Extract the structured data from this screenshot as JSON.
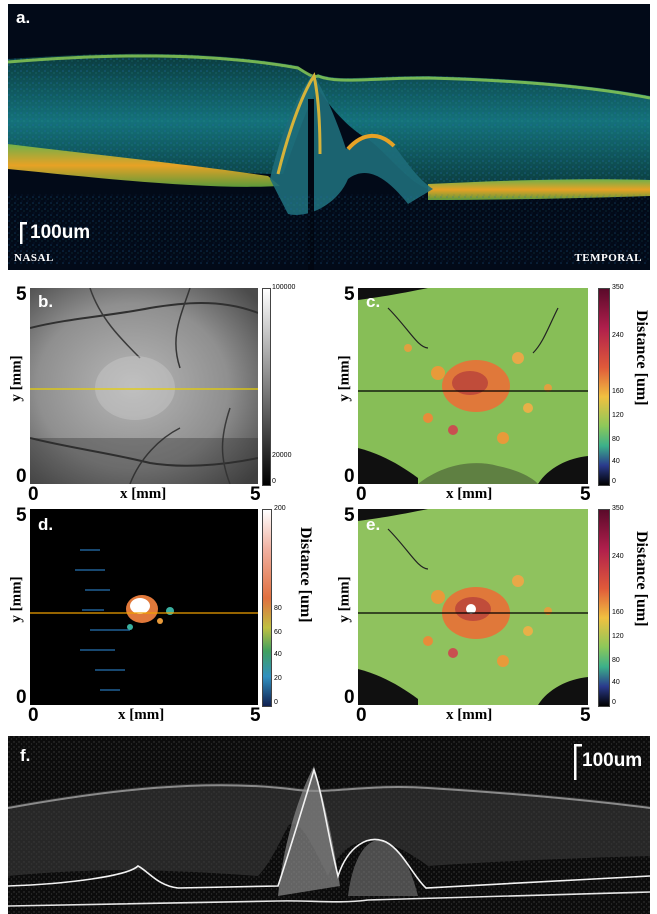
{
  "panels": {
    "a": {
      "label": "a.",
      "scale_bar": "100um",
      "left_orientation": "NASAL",
      "right_orientation": "TEMPORAL"
    },
    "b": {
      "label": "b.",
      "x_label": "x [mm]",
      "y_label": "y [mm]",
      "x_ticks": [
        "0",
        "5"
      ],
      "y_ticks": [
        "0",
        "5"
      ],
      "colorbar_ticks": [
        "100000",
        "20000",
        "0"
      ],
      "line_color": "#e8d000"
    },
    "c": {
      "label": "c.",
      "x_label": "x [mm]",
      "y_label": "y [mm]",
      "x_ticks": [
        "0",
        "5"
      ],
      "y_ticks": [
        "0",
        "5"
      ],
      "colorbar_title": "Distance [um]",
      "colorbar_ticks": [
        "350",
        "240",
        "160",
        "120",
        "80",
        "40",
        "0"
      ],
      "line_color": "#000000"
    },
    "d": {
      "label": "d.",
      "x_label": "x [mm]",
      "y_label": "y [mm]",
      "x_ticks": [
        "0",
        "5"
      ],
      "y_ticks": [
        "0",
        "5"
      ],
      "colorbar_title": "Distance [um]",
      "colorbar_ticks": [
        "200",
        "80",
        "60",
        "40",
        "20",
        "0"
      ],
      "line_color": "#f0a000"
    },
    "e": {
      "label": "e.",
      "x_label": "x [mm]",
      "y_label": "y [mm]",
      "x_ticks": [
        "0",
        "5"
      ],
      "y_ticks": [
        "0",
        "5"
      ],
      "colorbar_title": "Distance [um]",
      "colorbar_ticks": [
        "350",
        "240",
        "160",
        "120",
        "80",
        "40",
        "0"
      ],
      "line_color": "#000000"
    },
    "f": {
      "label": "f.",
      "scale_bar": "100um"
    }
  }
}
